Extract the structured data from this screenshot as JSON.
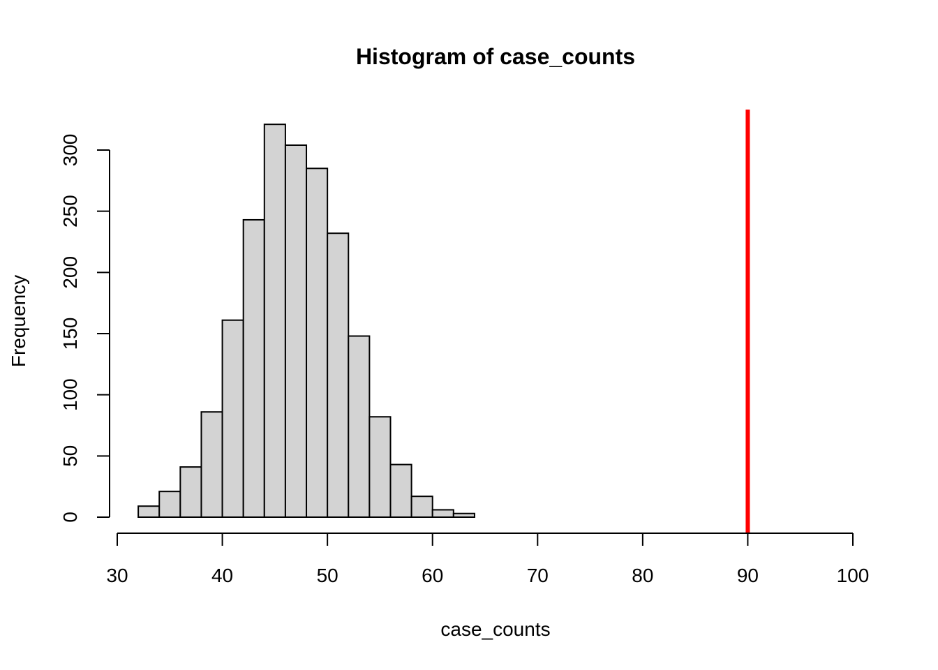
{
  "chart_data": {
    "type": "bar",
    "title": "Histogram of case_counts",
    "xlabel": "case_counts",
    "ylabel": "Frequency",
    "xlim": [
      30,
      100
    ],
    "ylim": [
      0,
      300
    ],
    "x_ticks": [
      30,
      40,
      50,
      60,
      70,
      80,
      90,
      100
    ],
    "y_ticks": [
      0,
      50,
      100,
      150,
      200,
      250,
      300
    ],
    "bin_width": 2,
    "bins": [
      {
        "x0": 32,
        "x1": 34,
        "count": 9
      },
      {
        "x0": 34,
        "x1": 36,
        "count": 21
      },
      {
        "x0": 36,
        "x1": 38,
        "count": 41
      },
      {
        "x0": 38,
        "x1": 40,
        "count": 86
      },
      {
        "x0": 40,
        "x1": 42,
        "count": 161
      },
      {
        "x0": 42,
        "x1": 44,
        "count": 243
      },
      {
        "x0": 44,
        "x1": 46,
        "count": 321
      },
      {
        "x0": 46,
        "x1": 48,
        "count": 304
      },
      {
        "x0": 48,
        "x1": 50,
        "count": 285
      },
      {
        "x0": 50,
        "x1": 52,
        "count": 232
      },
      {
        "x0": 52,
        "x1": 54,
        "count": 148
      },
      {
        "x0": 54,
        "x1": 56,
        "count": 82
      },
      {
        "x0": 56,
        "x1": 58,
        "count": 43
      },
      {
        "x0": 58,
        "x1": 60,
        "count": 17
      },
      {
        "x0": 60,
        "x1": 62,
        "count": 6
      },
      {
        "x0": 62,
        "x1": 64,
        "count": 3
      }
    ],
    "bar_fill": "#d3d3d3",
    "reference_line": {
      "x": 90,
      "color": "#ff0000"
    },
    "grid": false
  }
}
